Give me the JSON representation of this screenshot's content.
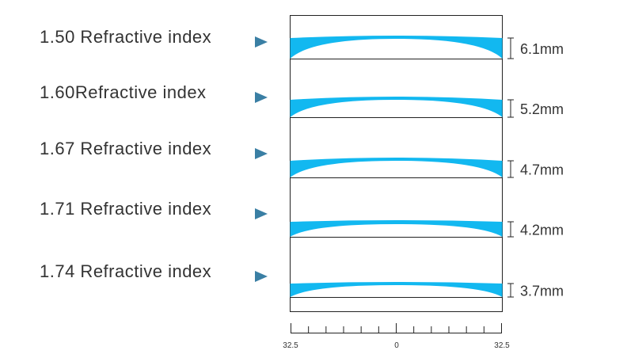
{
  "rows": [
    {
      "label": "1.50 Refractive index",
      "thickness": "6.1mm"
    },
    {
      "label": "1.60Refractive index",
      "thickness": "5.2mm"
    },
    {
      "label": "1.67 Refractive index",
      "thickness": "4.7mm"
    },
    {
      "label": "1.71 Refractive index",
      "thickness": "4.2mm"
    },
    {
      "label": "1.74 Refractive index",
      "thickness": "3.7mm"
    }
  ],
  "ruler": {
    "labels": [
      "32.5",
      "0",
      "32.5"
    ]
  }
}
